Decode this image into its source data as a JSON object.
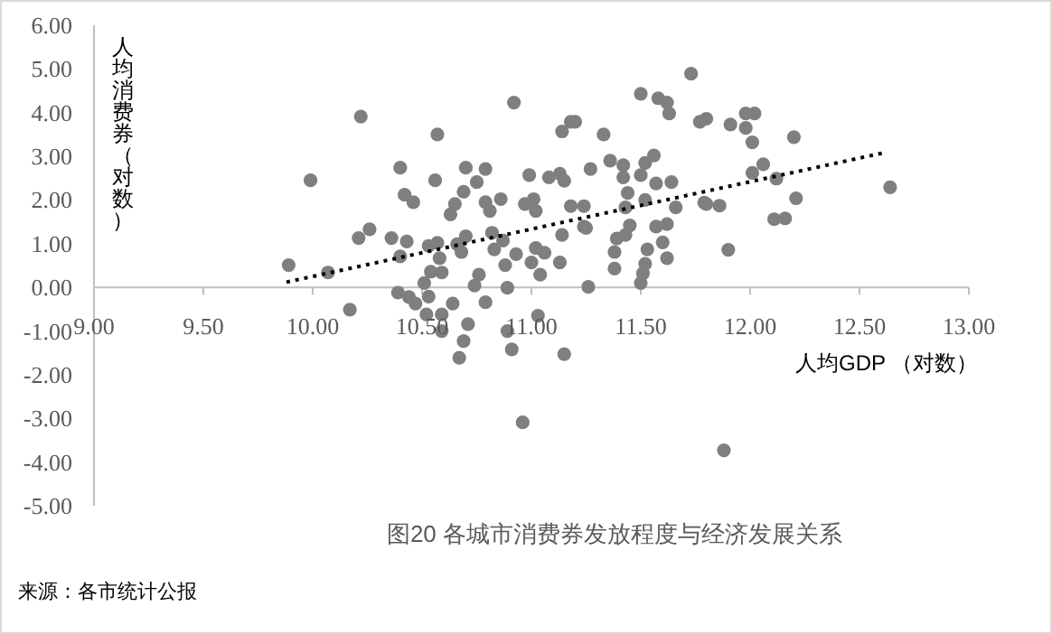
{
  "chart_data": {
    "type": "scatter",
    "title": "图20  各城市消费券发放程度与经济发展关系",
    "xlabel": "人均GDP （对数）",
    "ylabel": "人均消费券（对数）",
    "annotations": [
      "来源：各市统计公报"
    ],
    "grid": false,
    "legend": false,
    "xlim": [
      9,
      13
    ],
    "ylim": [
      -5,
      6
    ],
    "xticks": [
      {
        "value": 9,
        "label": "9.00"
      },
      {
        "value": 9.5,
        "label": "9.50"
      },
      {
        "value": 10,
        "label": "10.00"
      },
      {
        "value": 10.5,
        "label": "10.50"
      },
      {
        "value": 11,
        "label": "11.00"
      },
      {
        "value": 11.5,
        "label": "11.50"
      },
      {
        "value": 12,
        "label": "12.00"
      },
      {
        "value": 12.5,
        "label": "12.50"
      },
      {
        "value": 13,
        "label": "13.00"
      }
    ],
    "yticks": [
      {
        "value": -5,
        "label": "-5.00"
      },
      {
        "value": -4,
        "label": "-4.00"
      },
      {
        "value": -3,
        "label": "-3.00"
      },
      {
        "value": -2,
        "label": "-2.00"
      },
      {
        "value": -1,
        "label": "-1.00"
      },
      {
        "value": 0,
        "label": "0.00"
      },
      {
        "value": 1,
        "label": "1.00"
      },
      {
        "value": 2,
        "label": "2.00"
      },
      {
        "value": 3,
        "label": "3.00"
      },
      {
        "value": 4,
        "label": "4.00"
      },
      {
        "value": 5,
        "label": "5.00"
      },
      {
        "value": 6,
        "label": "6.00"
      }
    ],
    "series": [
      {
        "type": "scatter",
        "color": "#7f7f7f",
        "marker": "circle",
        "x": [
          10.22,
          10.57,
          9.99,
          10.4,
          10.56,
          10.42,
          10.46,
          10.7,
          10.79,
          10.75,
          10.69,
          10.65,
          10.63,
          10.79,
          10.26,
          10.21,
          10.36,
          10.43,
          10.53,
          10.57,
          10.7,
          10.66,
          10.68,
          10.58,
          10.59,
          10.54,
          10.51,
          10.4,
          9.89,
          10.07,
          10.76,
          10.74,
          10.39,
          10.44,
          10.53,
          10.47,
          10.64,
          10.82,
          10.87,
          10.83,
          10.17,
          10.52,
          10.59,
          10.59,
          10.71,
          10.69,
          10.67,
          10.79,
          10.88,
          10.89,
          10.89,
          10.91,
          10.96,
          10.93,
          11.02,
          11.06,
          11.0,
          11.04,
          11.14,
          11.13,
          11.26,
          11.15,
          11.24,
          11.39,
          11.38,
          11.38,
          11.43,
          11.03,
          10.92,
          11.14,
          11.18,
          11.2,
          11.33,
          11.5,
          11.58,
          11.62,
          11.63,
          11.73,
          11.77,
          10.99,
          11.08,
          11.13,
          11.15,
          11.27,
          11.36,
          11.42,
          11.42,
          11.5,
          11.52,
          11.56,
          11.57,
          11.64,
          10.86,
          10.81,
          10.97,
          11.01,
          11.02,
          11.18,
          11.24,
          11.25,
          11.44,
          11.43,
          11.45,
          11.52,
          11.66,
          11.57,
          11.62,
          11.79,
          11.53,
          11.6,
          11.62,
          11.52,
          11.51,
          11.5,
          11.8,
          11.91,
          11.98,
          12.02,
          11.98,
          12.01,
          12.2,
          12.06,
          12.01,
          12.12,
          11.8,
          11.86,
          12.21,
          12.11,
          12.16,
          11.9,
          12.64,
          11.88
        ],
        "values": [
          3.91,
          3.5,
          2.45,
          2.74,
          2.45,
          2.12,
          1.95,
          2.74,
          2.71,
          2.41,
          2.19,
          1.91,
          1.67,
          1.95,
          1.33,
          1.13,
          1.13,
          1.05,
          0.95,
          1.02,
          1.17,
          0.99,
          0.81,
          0.67,
          0.34,
          0.36,
          0.1,
          0.71,
          0.51,
          0.34,
          0.29,
          0.04,
          -0.12,
          -0.22,
          -0.21,
          -0.37,
          -0.37,
          1.25,
          1.07,
          0.87,
          -0.51,
          -0.62,
          -0.62,
          -1.0,
          -0.84,
          -1.23,
          -1.61,
          -0.34,
          0.51,
          -0.01,
          -1.0,
          -1.42,
          -3.09,
          0.76,
          0.9,
          0.79,
          0.57,
          0.29,
          1.2,
          0.57,
          0.01,
          -1.53,
          1.39,
          1.12,
          0.81,
          0.43,
          1.2,
          -0.65,
          4.23,
          3.57,
          3.79,
          3.79,
          3.5,
          4.43,
          4.33,
          4.23,
          3.98,
          4.89,
          3.79,
          2.57,
          2.52,
          2.6,
          2.44,
          2.71,
          2.9,
          2.8,
          2.52,
          2.57,
          2.85,
          3.02,
          2.38,
          2.41,
          2.02,
          1.75,
          1.91,
          2.02,
          1.75,
          1.86,
          1.86,
          1.36,
          2.16,
          1.83,
          1.42,
          2.0,
          1.83,
          1.39,
          1.45,
          1.94,
          0.87,
          1.03,
          0.67,
          0.54,
          0.32,
          0.1,
          3.86,
          3.73,
          3.98,
          3.98,
          3.65,
          3.32,
          3.44,
          2.82,
          2.62,
          2.49,
          1.91,
          1.87,
          2.04,
          1.56,
          1.58,
          0.86,
          2.29,
          -3.73
        ]
      },
      {
        "type": "line",
        "color": "#000000",
        "line_style": "dotted",
        "x": [
          9.88,
          12.62
        ],
        "values": [
          0.12,
          3.09
        ]
      }
    ]
  }
}
